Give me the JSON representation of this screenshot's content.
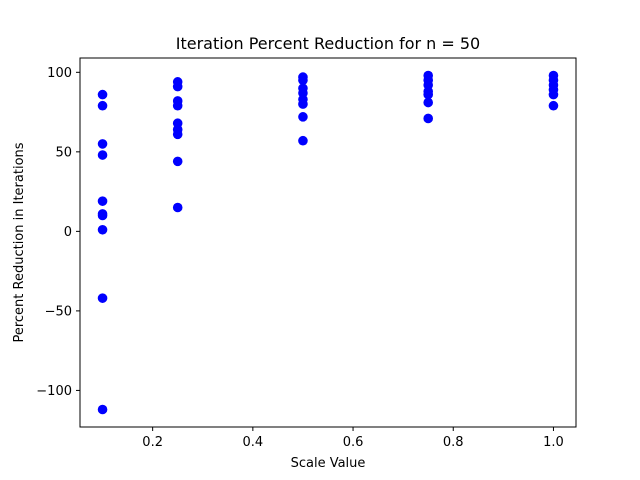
{
  "chart_data": {
    "type": "scatter",
    "title": "Iteration Percent Reduction for n = 50",
    "xlabel": "Scale Value",
    "ylabel": "Percent Reduction in Iterations",
    "xlim": [
      0.055,
      1.045
    ],
    "ylim": [
      -123,
      109
    ],
    "x_ticks": [
      0.2,
      0.4,
      0.6,
      0.8,
      1.0
    ],
    "x_tick_labels": [
      "0.2",
      "0.4",
      "0.6",
      "0.8",
      "1.0"
    ],
    "y_ticks": [
      -100,
      -50,
      0,
      50,
      100
    ],
    "y_tick_labels": [
      "−100",
      "−50",
      "0",
      "50",
      "100"
    ],
    "grid": false,
    "marker_color": "#0000ff",
    "points": [
      {
        "x": 0.1,
        "y": 86
      },
      {
        "x": 0.1,
        "y": 79
      },
      {
        "x": 0.1,
        "y": 55
      },
      {
        "x": 0.1,
        "y": 48
      },
      {
        "x": 0.1,
        "y": 19
      },
      {
        "x": 0.1,
        "y": 11
      },
      {
        "x": 0.1,
        "y": 10
      },
      {
        "x": 0.1,
        "y": 1
      },
      {
        "x": 0.1,
        "y": -42
      },
      {
        "x": 0.1,
        "y": -112
      },
      {
        "x": 0.25,
        "y": 94
      },
      {
        "x": 0.25,
        "y": 91
      },
      {
        "x": 0.25,
        "y": 82
      },
      {
        "x": 0.25,
        "y": 79
      },
      {
        "x": 0.25,
        "y": 68
      },
      {
        "x": 0.25,
        "y": 64
      },
      {
        "x": 0.25,
        "y": 61
      },
      {
        "x": 0.25,
        "y": 44
      },
      {
        "x": 0.25,
        "y": 15
      },
      {
        "x": 0.5,
        "y": 97
      },
      {
        "x": 0.5,
        "y": 95
      },
      {
        "x": 0.5,
        "y": 90
      },
      {
        "x": 0.5,
        "y": 87
      },
      {
        "x": 0.5,
        "y": 83
      },
      {
        "x": 0.5,
        "y": 80
      },
      {
        "x": 0.5,
        "y": 72
      },
      {
        "x": 0.5,
        "y": 57
      },
      {
        "x": 0.75,
        "y": 98
      },
      {
        "x": 0.75,
        "y": 95
      },
      {
        "x": 0.75,
        "y": 92
      },
      {
        "x": 0.75,
        "y": 88
      },
      {
        "x": 0.75,
        "y": 86
      },
      {
        "x": 0.75,
        "y": 81
      },
      {
        "x": 0.75,
        "y": 71
      },
      {
        "x": 1.0,
        "y": 98
      },
      {
        "x": 1.0,
        "y": 95
      },
      {
        "x": 1.0,
        "y": 92
      },
      {
        "x": 1.0,
        "y": 89
      },
      {
        "x": 1.0,
        "y": 86
      },
      {
        "x": 1.0,
        "y": 79
      }
    ]
  }
}
